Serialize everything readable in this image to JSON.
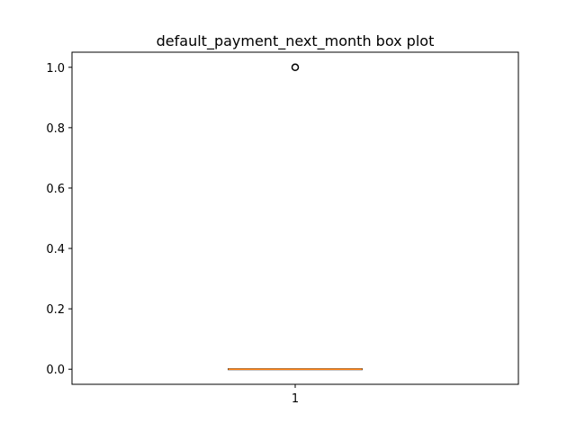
{
  "chart_data": {
    "type": "box",
    "title": "default_payment_next_month box plot",
    "xlabel": "",
    "ylabel": "",
    "categories": [
      "1"
    ],
    "boxes": [
      {
        "category": "1",
        "min": 0,
        "q1": 0,
        "median": 0,
        "q3": 0,
        "max": 0,
        "outliers": [
          1.0
        ]
      }
    ],
    "ylim": [
      -0.05,
      1.05
    ],
    "yticks": [
      0.0,
      0.2,
      0.4,
      0.6,
      0.8,
      1.0
    ],
    "ytick_labels": [
      "0.0",
      "0.2",
      "0.4",
      "0.6",
      "0.8",
      "1.0"
    ],
    "grid": false,
    "colors": {
      "median": "#ff7f0e",
      "box": "#000000",
      "outlier": "#000000"
    }
  }
}
